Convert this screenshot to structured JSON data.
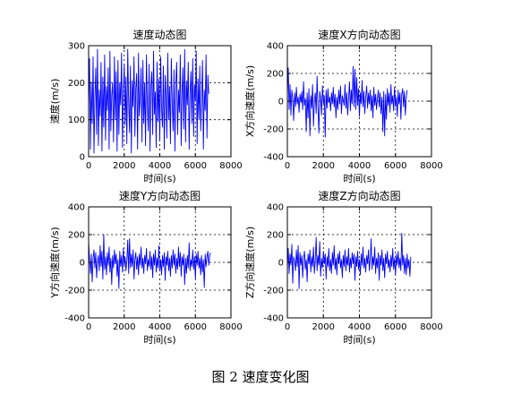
{
  "figure": {
    "caption": "图 2  速度变化图"
  },
  "chart_data": [
    {
      "type": "line",
      "title": "速度动态图",
      "xlabel": "时间(s)",
      "ylabel": "速度(m/s)",
      "xlim": [
        0,
        8000
      ],
      "ylim": [
        0,
        300
      ],
      "xticks": [
        "0",
        "2000",
        "4000",
        "6000",
        "8000"
      ],
      "yticks": [
        "0",
        "100",
        "200",
        "300"
      ],
      "grid": true,
      "color": "#0000ff",
      "x_range": [
        0,
        7200
      ],
      "series": [
        {
          "x_step": 50,
          "values": [
            130,
            265,
            20,
            200,
            90,
            270,
            10,
            160,
            240,
            60,
            290,
            30,
            180,
            110,
            255,
            15,
            215,
            80,
            275,
            45,
            190,
            125,
            240,
            20,
            285,
            70,
            165,
            200,
            40,
            270,
            100,
            230,
            15,
            260,
            60,
            200,
            140,
            280,
            25,
            175,
            250,
            85,
            215,
            35,
            290,
            150,
            65,
            245,
            10,
            205,
            135,
            270,
            55,
            185,
            225,
            20,
            280,
            110,
            160,
            240,
            40,
            260,
            90,
            200,
            30,
            275,
            140,
            70,
            250,
            15,
            195,
            230,
            60,
            285,
            115,
            175,
            25,
            255,
            95,
            210,
            45,
            270,
            130,
            80,
            245,
            20,
            220,
            160,
            50,
            280,
            100,
            190,
            35,
            265,
            145,
            70,
            235,
            15,
            200,
            255,
            60,
            180,
            120,
            275,
            30,
            165,
            240,
            75,
            290,
            40,
            205,
            140,
            255,
            20,
            170,
            230,
            90,
            265,
            55,
            195,
            150,
            285,
            35,
            210,
            100,
            245,
            70,
            160,
            260,
            20,
            180,
            125,
            275,
            50,
            220,
            170
          ]
        }
      ]
    },
    {
      "type": "line",
      "title": "速度X方向动态图",
      "xlabel": "时间(s)",
      "ylabel": "X方向速度(m/s)",
      "xlim": [
        0,
        8000
      ],
      "ylim": [
        -400,
        400
      ],
      "xticks": [
        "0",
        "2000",
        "4000",
        "6000",
        "8000"
      ],
      "yticks": [
        "-400",
        "-200",
        "0",
        "200",
        "400"
      ],
      "grid": true,
      "color": "#0000ff",
      "x_range": [
        0,
        7200
      ],
      "series": [
        {
          "x_step": 50,
          "values": [
            40,
            240,
            -60,
            120,
            -100,
            80,
            20,
            -140,
            60,
            -40,
            100,
            -20,
            30,
            -80,
            50,
            -10,
            70,
            -60,
            140,
            -30,
            20,
            -220,
            60,
            -120,
            90,
            -250,
            40,
            -50,
            120,
            -180,
            10,
            60,
            -90,
            180,
            -40,
            -230,
            70,
            20,
            -100,
            110,
            -20,
            40,
            -260,
            80,
            -50,
            90,
            -10,
            30,
            -70,
            60,
            -20,
            100,
            -40,
            50,
            -120,
            30,
            -60,
            80,
            -20,
            110,
            -90,
            40,
            10,
            -30,
            120,
            -50,
            60,
            -100,
            20,
            140,
            -70,
            80,
            -20,
            250,
            -40,
            230,
            -60,
            170,
            -30,
            90,
            -110,
            60,
            -20,
            150,
            -40,
            70,
            -90,
            30,
            110,
            -50,
            60,
            -20,
            80,
            -70,
            40,
            -120,
            100,
            -30,
            50,
            -60,
            20,
            80,
            -40,
            60,
            -90,
            30,
            -220,
            70,
            -250,
            50,
            -130,
            90,
            -30,
            60,
            -80,
            120,
            -20,
            40,
            -70,
            100,
            -40,
            30,
            -110,
            80,
            -20,
            60,
            -130,
            50,
            90,
            -40,
            70,
            -100,
            20,
            80
          ]
        }
      ]
    },
    {
      "type": "line",
      "title": "速度Y方向动态图",
      "xlabel": "时间(s)",
      "ylabel": "Y方向速度(m/s)",
      "xlim": [
        0,
        8000
      ],
      "ylim": [
        -400,
        400
      ],
      "xticks": [
        "0",
        "2000",
        "4000",
        "6000",
        "8000"
      ],
      "yticks": [
        "-400",
        "-200",
        "0",
        "200",
        "400"
      ],
      "grid": true,
      "color": "#0000ff",
      "x_range": [
        0,
        7200
      ],
      "series": [
        {
          "x_step": 50,
          "values": [
            150,
            20,
            -80,
            60,
            -140,
            30,
            90,
            -40,
            70,
            -110,
            10,
            50,
            -60,
            120,
            -30,
            80,
            -120,
            200,
            -50,
            40,
            -90,
            70,
            -20,
            110,
            -70,
            30,
            -160,
            50,
            -40,
            90,
            -10,
            60,
            -100,
            20,
            -190,
            80,
            -30,
            50,
            -70,
            100,
            -20,
            40,
            -60,
            10,
            160,
            -80,
            170,
            -40,
            60,
            -30,
            90,
            -120,
            20,
            70,
            -50,
            40,
            -90,
            60,
            -20,
            110,
            -40,
            30,
            -80,
            50,
            -10,
            100,
            -60,
            20,
            -30,
            80,
            -50,
            40,
            -110,
            60,
            -20,
            90,
            -70,
            30,
            -40,
            120,
            -60,
            20,
            -90,
            50,
            -30,
            70,
            -130,
            40,
            -20,
            80,
            -60,
            30,
            -100,
            50,
            -40,
            90,
            -20,
            60,
            -80,
            30,
            -50,
            110,
            -30,
            70,
            -100,
            40,
            -20,
            60,
            -160,
            30,
            -80,
            50,
            -40,
            140,
            -60,
            20,
            -30,
            90,
            -50,
            40,
            -120,
            60,
            -20,
            80,
            -40,
            30,
            -90,
            50,
            -70,
            20,
            -180,
            60,
            -30,
            40,
            80,
            -20,
            50,
            70
          ]
        }
      ]
    },
    {
      "type": "line",
      "title": "速度Z方向动态图",
      "xlabel": "时间(s)",
      "ylabel": "Z方向速度(m/s)",
      "xlim": [
        0,
        8000
      ],
      "ylim": [
        -400,
        400
      ],
      "xticks": [
        "0",
        "2000",
        "4000",
        "6000",
        "8000"
      ],
      "yticks": [
        "-400",
        "-200",
        "0",
        "200",
        "400"
      ],
      "grid": true,
      "color": "#0000ff",
      "x_range": [
        0,
        7200
      ],
      "series": [
        {
          "x_step": 50,
          "values": [
            -40,
            100,
            -80,
            60,
            -20,
            130,
            -150,
            40,
            10,
            -60,
            90,
            -30,
            120,
            -190,
            70,
            -20,
            50,
            -110,
            30,
            80,
            -50,
            20,
            -140,
            60,
            -10,
            90,
            -70,
            40,
            -30,
            110,
            -80,
            20,
            180,
            -60,
            50,
            -20,
            150,
            -100,
            30,
            -40,
            80,
            -10,
            60,
            -120,
            40,
            -30,
            100,
            -60,
            20,
            -80,
            70,
            -20,
            120,
            -50,
            30,
            -90,
            60,
            -10,
            80,
            -40,
            20,
            -110,
            50,
            -30,
            90,
            -60,
            40,
            -20,
            100,
            -70,
            30,
            -40,
            70,
            -10,
            60,
            -130,
            40,
            -30,
            80,
            -50,
            20,
            -90,
            60,
            -20,
            110,
            -40,
            30,
            -70,
            50,
            -10,
            90,
            -60,
            20,
            170,
            -50,
            40,
            -20,
            110,
            -80,
            30,
            -40,
            70,
            -130,
            50,
            -20,
            90,
            -60,
            30,
            -110,
            60,
            -10,
            80,
            -40,
            20,
            -70,
            50,
            -30,
            100,
            -50,
            30,
            -90,
            60,
            -20,
            80,
            -40,
            30,
            -60,
            210,
            -20,
            50,
            -80,
            30,
            -90,
            60,
            -40,
            20,
            -100,
            40
          ]
        }
      ]
    }
  ]
}
